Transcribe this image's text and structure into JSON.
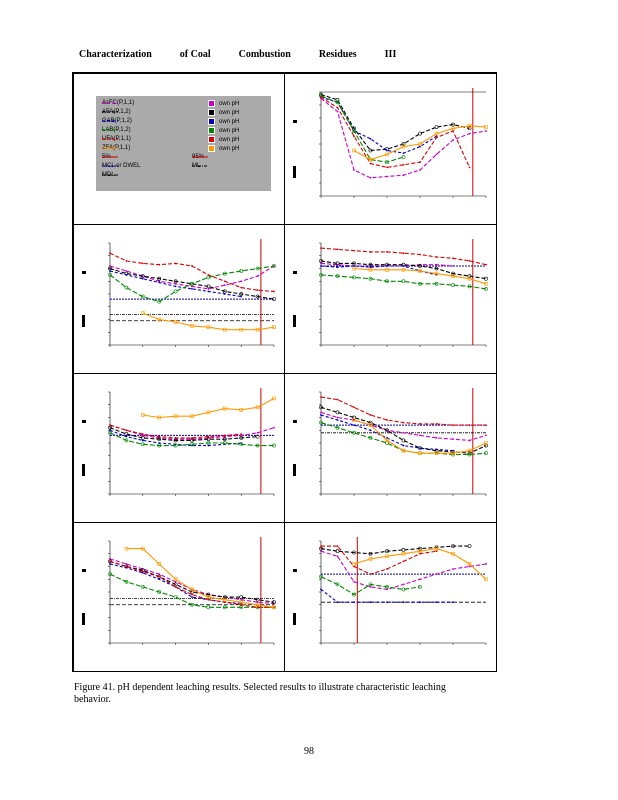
{
  "header": {
    "parts": [
      "Characterization",
      "of Coal",
      "Combustion",
      "Residues",
      "III"
    ]
  },
  "legend": {
    "items": [
      {
        "label": "AsFC(P,1,1)",
        "color": "#cc00cc",
        "style": "dash",
        "own": "own pH"
      },
      {
        "label": "AFA(P,1,2)",
        "color": "#000000",
        "style": "dash",
        "own": "own pH"
      },
      {
        "label": "GAB(P,1,2)",
        "color": "#0000cc",
        "style": "dash",
        "own": "own pH"
      },
      {
        "label": "LAB(P,1,2)",
        "color": "#008800",
        "style": "dash",
        "own": "own pH"
      },
      {
        "label": "UFA(P,1,1)",
        "color": "#dd0000",
        "style": "dash",
        "own": "own pH"
      },
      {
        "label": "ZFA(P,1,1)",
        "color": "#ff9900",
        "style": "solid",
        "own": "own pH"
      }
    ],
    "refs": [
      {
        "left": "5%",
        "right": "95%"
      },
      {
        "left": "MCL or DWEL",
        "right": "ML"
      },
      {
        "left": "MDL",
        "right": ""
      }
    ]
  },
  "colors": {
    "AsFC": "#cc00cc",
    "AFA": "#000000",
    "GAB": "#0000cc",
    "LAB": "#008800",
    "UFA": "#dd0000",
    "ZFA": "#ff9900",
    "ref_red": "#cc0000",
    "mcl": "#0000aa"
  },
  "chart_data": [
    {
      "panel": "top-right",
      "type": "line",
      "x": [
        2,
        3,
        4,
        5,
        6,
        7,
        8,
        9,
        10,
        11,
        12
      ],
      "series": [
        {
          "name": "AsFC(P,1,1)",
          "values": [
            8.5,
            7.5,
            3,
            2.4,
            2.5,
            2.6,
            3,
            4.2,
            5.3,
            5.8,
            6
          ]
        },
        {
          "name": "AFA(P,1,2)",
          "values": [
            8.8,
            8.4,
            6.2,
            4.5,
            4.6,
            5,
            5.8,
            6.3,
            6.5,
            6.2,
            null
          ]
        },
        {
          "name": "GAB(P,1,2)",
          "values": [
            8.6,
            8.2,
            6,
            5.4,
            4.5,
            4.3,
            4.8,
            5.6,
            null,
            null,
            null
          ]
        },
        {
          "name": "LAB(P,1,2)",
          "values": [
            8.7,
            8.2,
            6,
            3.8,
            3.6,
            4,
            null,
            null,
            null,
            null,
            null
          ]
        },
        {
          "name": "UFA(P,1,1)",
          "values": [
            8.6,
            7.8,
            5.6,
            3.5,
            3.2,
            3.4,
            3.6,
            5.5,
            6,
            3.2,
            null
          ]
        },
        {
          "name": "ZFA(P,1,1)",
          "values": [
            null,
            null,
            4.5,
            3.8,
            4.2,
            4.8,
            5,
            5.8,
            6.2,
            6.4,
            6.3
          ]
        }
      ]
    },
    {
      "panel": "middle-left-1",
      "type": "line",
      "x": [
        2,
        3,
        4,
        5,
        6,
        7,
        8,
        9,
        10,
        11,
        12
      ],
      "series": [
        {
          "name": "AsFC(P,1,1)",
          "values": [
            7.2,
            6.8,
            6.4,
            6.0,
            5.8,
            5.6,
            5.4,
            5.7,
            6.0,
            6.4,
            7.2
          ]
        },
        {
          "name": "AFA(P,1,2)",
          "values": [
            7.0,
            6.6,
            6.4,
            6.2,
            6.0,
            5.8,
            5.6,
            5.2,
            5.0,
            4.8,
            4.6
          ]
        },
        {
          "name": "GAB(P,1,2)",
          "values": [
            6.8,
            6.5,
            6.2,
            5.9,
            5.6,
            5.4,
            5.2,
            5.0,
            4.8,
            null,
            null
          ]
        },
        {
          "name": "LAB(P,1,2)",
          "values": [
            6.5,
            5.5,
            4.8,
            4.4,
            5.2,
            5.8,
            6.3,
            6.6,
            6.8,
            7.0,
            7.2
          ]
        },
        {
          "name": "UFA(P,1,1)",
          "values": [
            8.2,
            7.6,
            7.4,
            7.3,
            7.4,
            7.2,
            6.5,
            6.0,
            5.5,
            5.3,
            5.2
          ]
        },
        {
          "name": "ZFA(P,1,1)",
          "values": [
            null,
            null,
            3.5,
            3.0,
            2.8,
            2.5,
            2.4,
            2.2,
            2.2,
            2.2,
            2.4
          ]
        }
      ]
    },
    {
      "panel": "middle-right-1",
      "type": "line",
      "x": [
        2,
        3,
        4,
        5,
        6,
        7,
        8,
        9,
        10,
        11,
        12
      ],
      "series": [
        {
          "name": "AsFC(P,1,1)",
          "values": [
            7.4,
            7.3,
            7.2,
            7.2,
            7.2,
            7.2,
            7.3,
            7.3,
            7.2,
            null,
            null
          ]
        },
        {
          "name": "AFA(P,1,2)",
          "values": [
            7.6,
            7.4,
            7.4,
            7.3,
            7.3,
            7.3,
            7.2,
            7.0,
            6.6,
            6.4,
            6.2
          ]
        },
        {
          "name": "GAB(P,1,2)",
          "values": [
            7.2,
            7.1,
            7.2,
            7.1,
            7.2,
            7.2,
            6.8,
            6.5,
            null,
            null,
            null
          ]
        },
        {
          "name": "LAB(P,1,2)",
          "values": [
            6.5,
            6.4,
            6.3,
            6.2,
            6.0,
            6.0,
            5.8,
            5.8,
            5.7,
            5.6,
            5.4
          ]
        },
        {
          "name": "UFA(P,1,1)",
          "values": [
            8.6,
            8.5,
            8.4,
            8.3,
            8.3,
            8.2,
            8.1,
            7.9,
            7.8,
            7.6,
            7.3
          ]
        },
        {
          "name": "ZFA(P,1,1)",
          "values": [
            null,
            null,
            7.0,
            6.9,
            6.9,
            6.9,
            6.8,
            6.6,
            6.4,
            6.2,
            5.8
          ]
        }
      ]
    },
    {
      "panel": "middle-left-2",
      "type": "line",
      "x": [
        2,
        3,
        4,
        5,
        6,
        7,
        8,
        9,
        10,
        11,
        12
      ],
      "series": [
        {
          "name": "AsFC(P,1,1)",
          "values": [
            6.4,
            6.0,
            5.6,
            5.4,
            5.3,
            5.3,
            5.4,
            5.5,
            5.6,
            5.8,
            6.2
          ]
        },
        {
          "name": "AFA(P,1,2)",
          "values": [
            6.2,
            5.7,
            5.4,
            5.3,
            5.2,
            5.2,
            5.3,
            5.3,
            5.4,
            5.5,
            null
          ]
        },
        {
          "name": "GAB(P,1,2)",
          "values": [
            6.0,
            5.5,
            5.2,
            5.0,
            4.9,
            4.8,
            4.8,
            4.9,
            5.0,
            null,
            null
          ]
        },
        {
          "name": "LAB(P,1,2)",
          "values": [
            5.8,
            5.2,
            4.9,
            4.8,
            4.8,
            4.9,
            5.0,
            5.0,
            4.9,
            4.8,
            4.8
          ]
        },
        {
          "name": "UFA(P,1,1)",
          "values": [
            6.4,
            6.0,
            5.7,
            5.5,
            5.4,
            5.4,
            5.5,
            5.6,
            5.7,
            null,
            null
          ]
        },
        {
          "name": "ZFA(P,1,1)",
          "values": [
            null,
            null,
            7.2,
            7.0,
            7.1,
            7.1,
            7.4,
            7.7,
            7.6,
            7.8,
            8.5
          ]
        }
      ]
    },
    {
      "panel": "middle-right-2",
      "type": "line",
      "x": [
        2,
        3,
        4,
        5,
        6,
        7,
        8,
        9,
        10,
        11,
        12
      ],
      "series": [
        {
          "name": "AsFC(P,1,1)",
          "values": [
            7.4,
            7.0,
            6.8,
            6.4,
            6.0,
            5.8,
            5.6,
            5.4,
            5.3,
            5.2,
            5.6
          ]
        },
        {
          "name": "AFA(P,1,2)",
          "values": [
            7.8,
            7.4,
            7.0,
            6.6,
            6.0,
            5.2,
            4.6,
            4.4,
            4.3,
            4.2,
            4.8
          ]
        },
        {
          "name": "GAB(P,1,2)",
          "values": [
            7.2,
            6.8,
            6.4,
            6.0,
            5.4,
            4.8,
            4.6,
            4.5,
            4.4,
            null,
            null
          ]
        },
        {
          "name": "LAB(P,1,2)",
          "values": [
            6.6,
            6.2,
            5.8,
            5.4,
            5.0,
            4.4,
            4.2,
            4.2,
            4.1,
            4.1,
            4.2
          ]
        },
        {
          "name": "UFA(P,1,1)",
          "values": [
            8.6,
            8.4,
            7.8,
            7.2,
            6.8,
            6.6,
            6.5,
            6.5,
            6.4,
            6.4,
            6.4
          ]
        },
        {
          "name": "ZFA(P,1,1)",
          "values": [
            null,
            null,
            6.8,
            6.4,
            5.2,
            4.4,
            4.2,
            4.2,
            4.2,
            4.4,
            5.0
          ]
        }
      ]
    },
    {
      "panel": "bottom-left",
      "type": "line",
      "x": [
        2,
        3,
        4,
        5,
        6,
        7,
        8,
        9,
        10,
        11,
        12
      ],
      "series": [
        {
          "name": "AsFC(P,1,1)",
          "values": [
            7.6,
            7.2,
            6.8,
            6.4,
            5.8,
            5.2,
            4.8,
            4.6,
            4.4,
            4.2,
            4.1
          ]
        },
        {
          "name": "AFA(P,1,2)",
          "values": [
            7.4,
            7.0,
            6.7,
            6.2,
            5.6,
            5.0,
            4.8,
            4.6,
            4.6,
            4.4,
            4.2
          ]
        },
        {
          "name": "GAB(P,1,2)",
          "values": [
            7.2,
            6.9,
            6.5,
            6.0,
            5.4,
            4.6,
            4.4,
            4.2,
            4.1,
            null,
            null
          ]
        },
        {
          "name": "LAB(P,1,2)",
          "values": [
            6.4,
            5.8,
            5.4,
            5.0,
            4.6,
            4.0,
            3.8,
            3.8,
            3.8,
            3.8,
            3.8
          ]
        },
        {
          "name": "UFA(P,1,1)",
          "values": [
            7.4,
            7.0,
            6.6,
            6.2,
            5.4,
            4.8,
            4.4,
            4.2,
            4.0,
            3.8,
            3.8
          ]
        },
        {
          "name": "ZFA(P,1,1)",
          "values": [
            null,
            8.4,
            8.4,
            7.2,
            6.0,
            5.2,
            4.6,
            4.4,
            4.2,
            4.0,
            3.8
          ]
        }
      ]
    },
    {
      "panel": "bottom-right",
      "type": "line",
      "x": [
        2,
        3,
        4,
        5,
        6,
        7,
        8,
        9,
        10,
        11,
        12
      ],
      "series": [
        {
          "name": "AsFC(P,1,1)",
          "values": [
            8.2,
            7.8,
            5.8,
            5.4,
            5.2,
            5.6,
            6.0,
            6.4,
            6.8,
            7.0,
            7.2
          ]
        },
        {
          "name": "AFA(P,1,2)",
          "values": [
            8.4,
            8.2,
            8.1,
            8.0,
            8.2,
            8.3,
            8.4,
            8.5,
            8.6,
            8.6,
            null
          ]
        },
        {
          "name": "GAB(P,1,2)",
          "values": [
            5.2,
            4.2,
            4.2,
            4.2,
            4.2,
            4.2,
            4.2,
            4.2,
            4.2,
            null,
            null
          ]
        },
        {
          "name": "LAB(P,1,2)",
          "values": [
            6.2,
            5.6,
            4.8,
            5.6,
            5.4,
            5.2,
            5.4,
            null,
            null,
            null,
            null
          ]
        },
        {
          "name": "UFA(P,1,1)",
          "values": [
            8.6,
            8.6,
            7.0,
            6.4,
            6.8,
            7.4,
            8.0,
            8.2,
            null,
            null,
            null
          ]
        },
        {
          "name": "ZFA(P,1,1)",
          "values": [
            null,
            null,
            7.2,
            7.6,
            7.8,
            8.0,
            8.2,
            8.4,
            8.0,
            7.2,
            6.0
          ]
        }
      ]
    }
  ],
  "refs": {
    "top-right": {
      "ml": null,
      "mcl": null,
      "mdl": null,
      "p95": 11.2,
      "p5": null
    },
    "middle-left-1": {
      "ml": 3.4,
      "mcl": 4.6,
      "mdl": 2.9,
      "p95": 11.2,
      "p5": null
    },
    "middle-right-1": {
      "ml": null,
      "mcl": 7.2,
      "mdl": null,
      "p95": 11.2,
      "p5": null
    },
    "middle-left-2": {
      "ml": null,
      "mcl": 5.6,
      "mdl": null,
      "p95": 11.2,
      "p5": null
    },
    "middle-right-2": {
      "ml": 5.8,
      "mcl": 6.4,
      "mdl": null,
      "p95": 11.2,
      "p5": null
    },
    "bottom-left": {
      "ml": 4.5,
      "mcl": null,
      "mdl": 4.0,
      "p95": 11.2,
      "p5": null
    },
    "bottom-right": {
      "ml": null,
      "mcl": 6.4,
      "mdl": 4.2,
      "p95": null,
      "p5": 4.2
    }
  },
  "caption": {
    "line1": "Figure 41. pH dependent leaching results. Selected results to illustrate characteristic leaching",
    "line2": "behavior."
  },
  "page_number": "98"
}
